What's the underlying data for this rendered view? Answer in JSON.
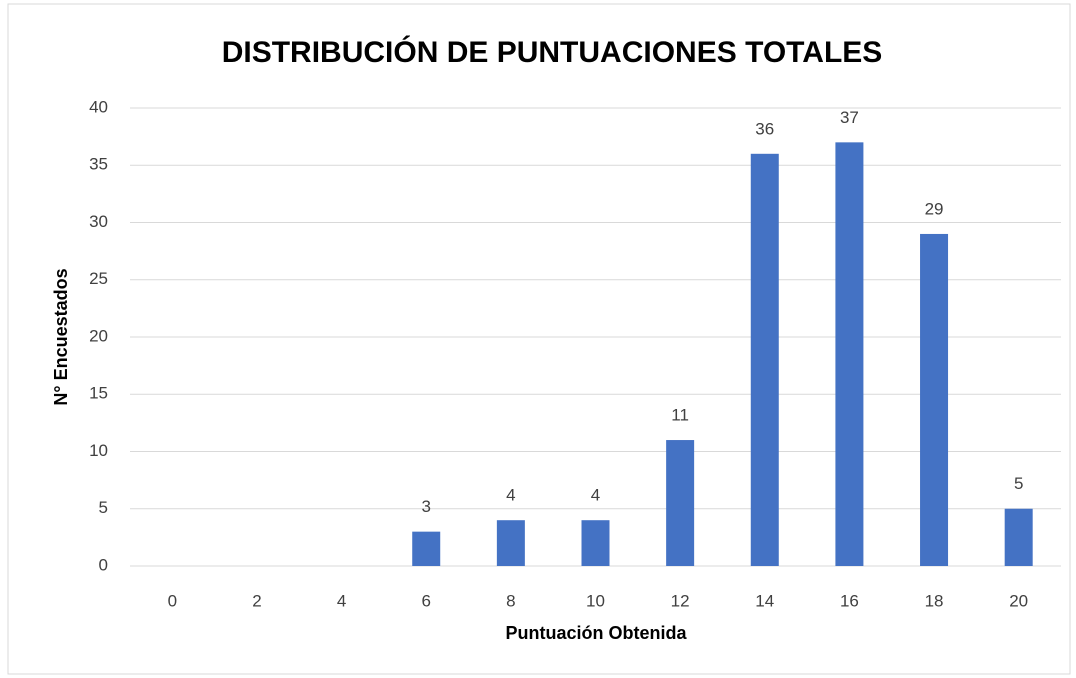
{
  "chart_data": {
    "type": "bar",
    "title": "DISTRIBUCIÓN DE PUNTUACIONES TOTALES",
    "x_label": "Puntuación Obtenida",
    "y_label": "N° Encuestados",
    "categories": [
      "0",
      "2",
      "4",
      "6",
      "8",
      "10",
      "12",
      "14",
      "16",
      "18",
      "20"
    ],
    "values": [
      null,
      null,
      null,
      3,
      4,
      4,
      11,
      36,
      37,
      29,
      5
    ],
    "color": "#4472c4",
    "ylim": [
      0,
      40
    ],
    "yticks": [
      0,
      5,
      10,
      15,
      20,
      25,
      30,
      35,
      40
    ],
    "grid": true
  }
}
